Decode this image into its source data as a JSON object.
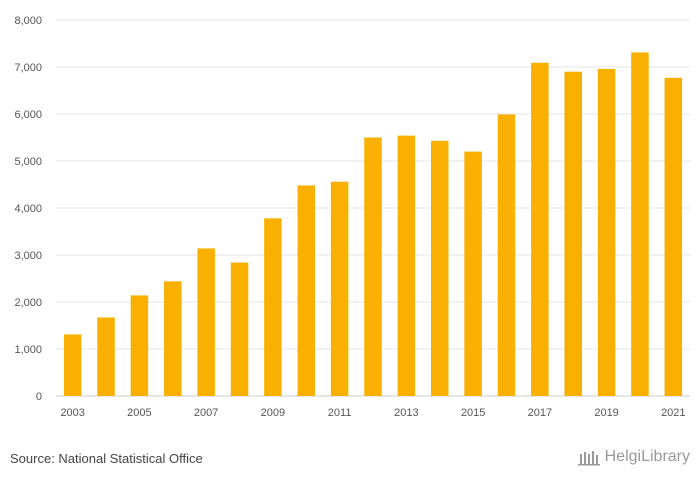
{
  "chart_data": {
    "type": "bar",
    "categories": [
      "2003",
      "2004",
      "2005",
      "2006",
      "2007",
      "2008",
      "2009",
      "2010",
      "2011",
      "2012",
      "2013",
      "2014",
      "2015",
      "2016",
      "2017",
      "2018",
      "2019",
      "2020",
      "2021"
    ],
    "values": [
      1310,
      1670,
      2140,
      2440,
      3140,
      2840,
      3780,
      4480,
      4560,
      5500,
      5540,
      5430,
      5200,
      5990,
      7090,
      6900,
      6960,
      7310,
      6770
    ],
    "x_tick_labels": [
      "2003",
      "2005",
      "2007",
      "2009",
      "2011",
      "2013",
      "2015",
      "2017",
      "2019",
      "2021"
    ],
    "y_tick_labels": [
      "0",
      "1,000",
      "2,000",
      "3,000",
      "4,000",
      "5,000",
      "6,000",
      "7,000",
      "8,000"
    ],
    "y_ticks": [
      0,
      1000,
      2000,
      3000,
      4000,
      5000,
      6000,
      7000,
      8000
    ],
    "ylim": [
      0,
      8000
    ],
    "title": "",
    "xlabel": "",
    "ylabel": "",
    "bar_color": "#f9b000",
    "grid": true
  },
  "footer": {
    "source": "Source: National Statistical Office",
    "logo_text": "HelgiLibrary",
    "logo_icon": "building-icon"
  },
  "colors": {
    "grid": "#e6e6e6",
    "axis": "#cccccc",
    "logo": "#9a9a9a"
  }
}
